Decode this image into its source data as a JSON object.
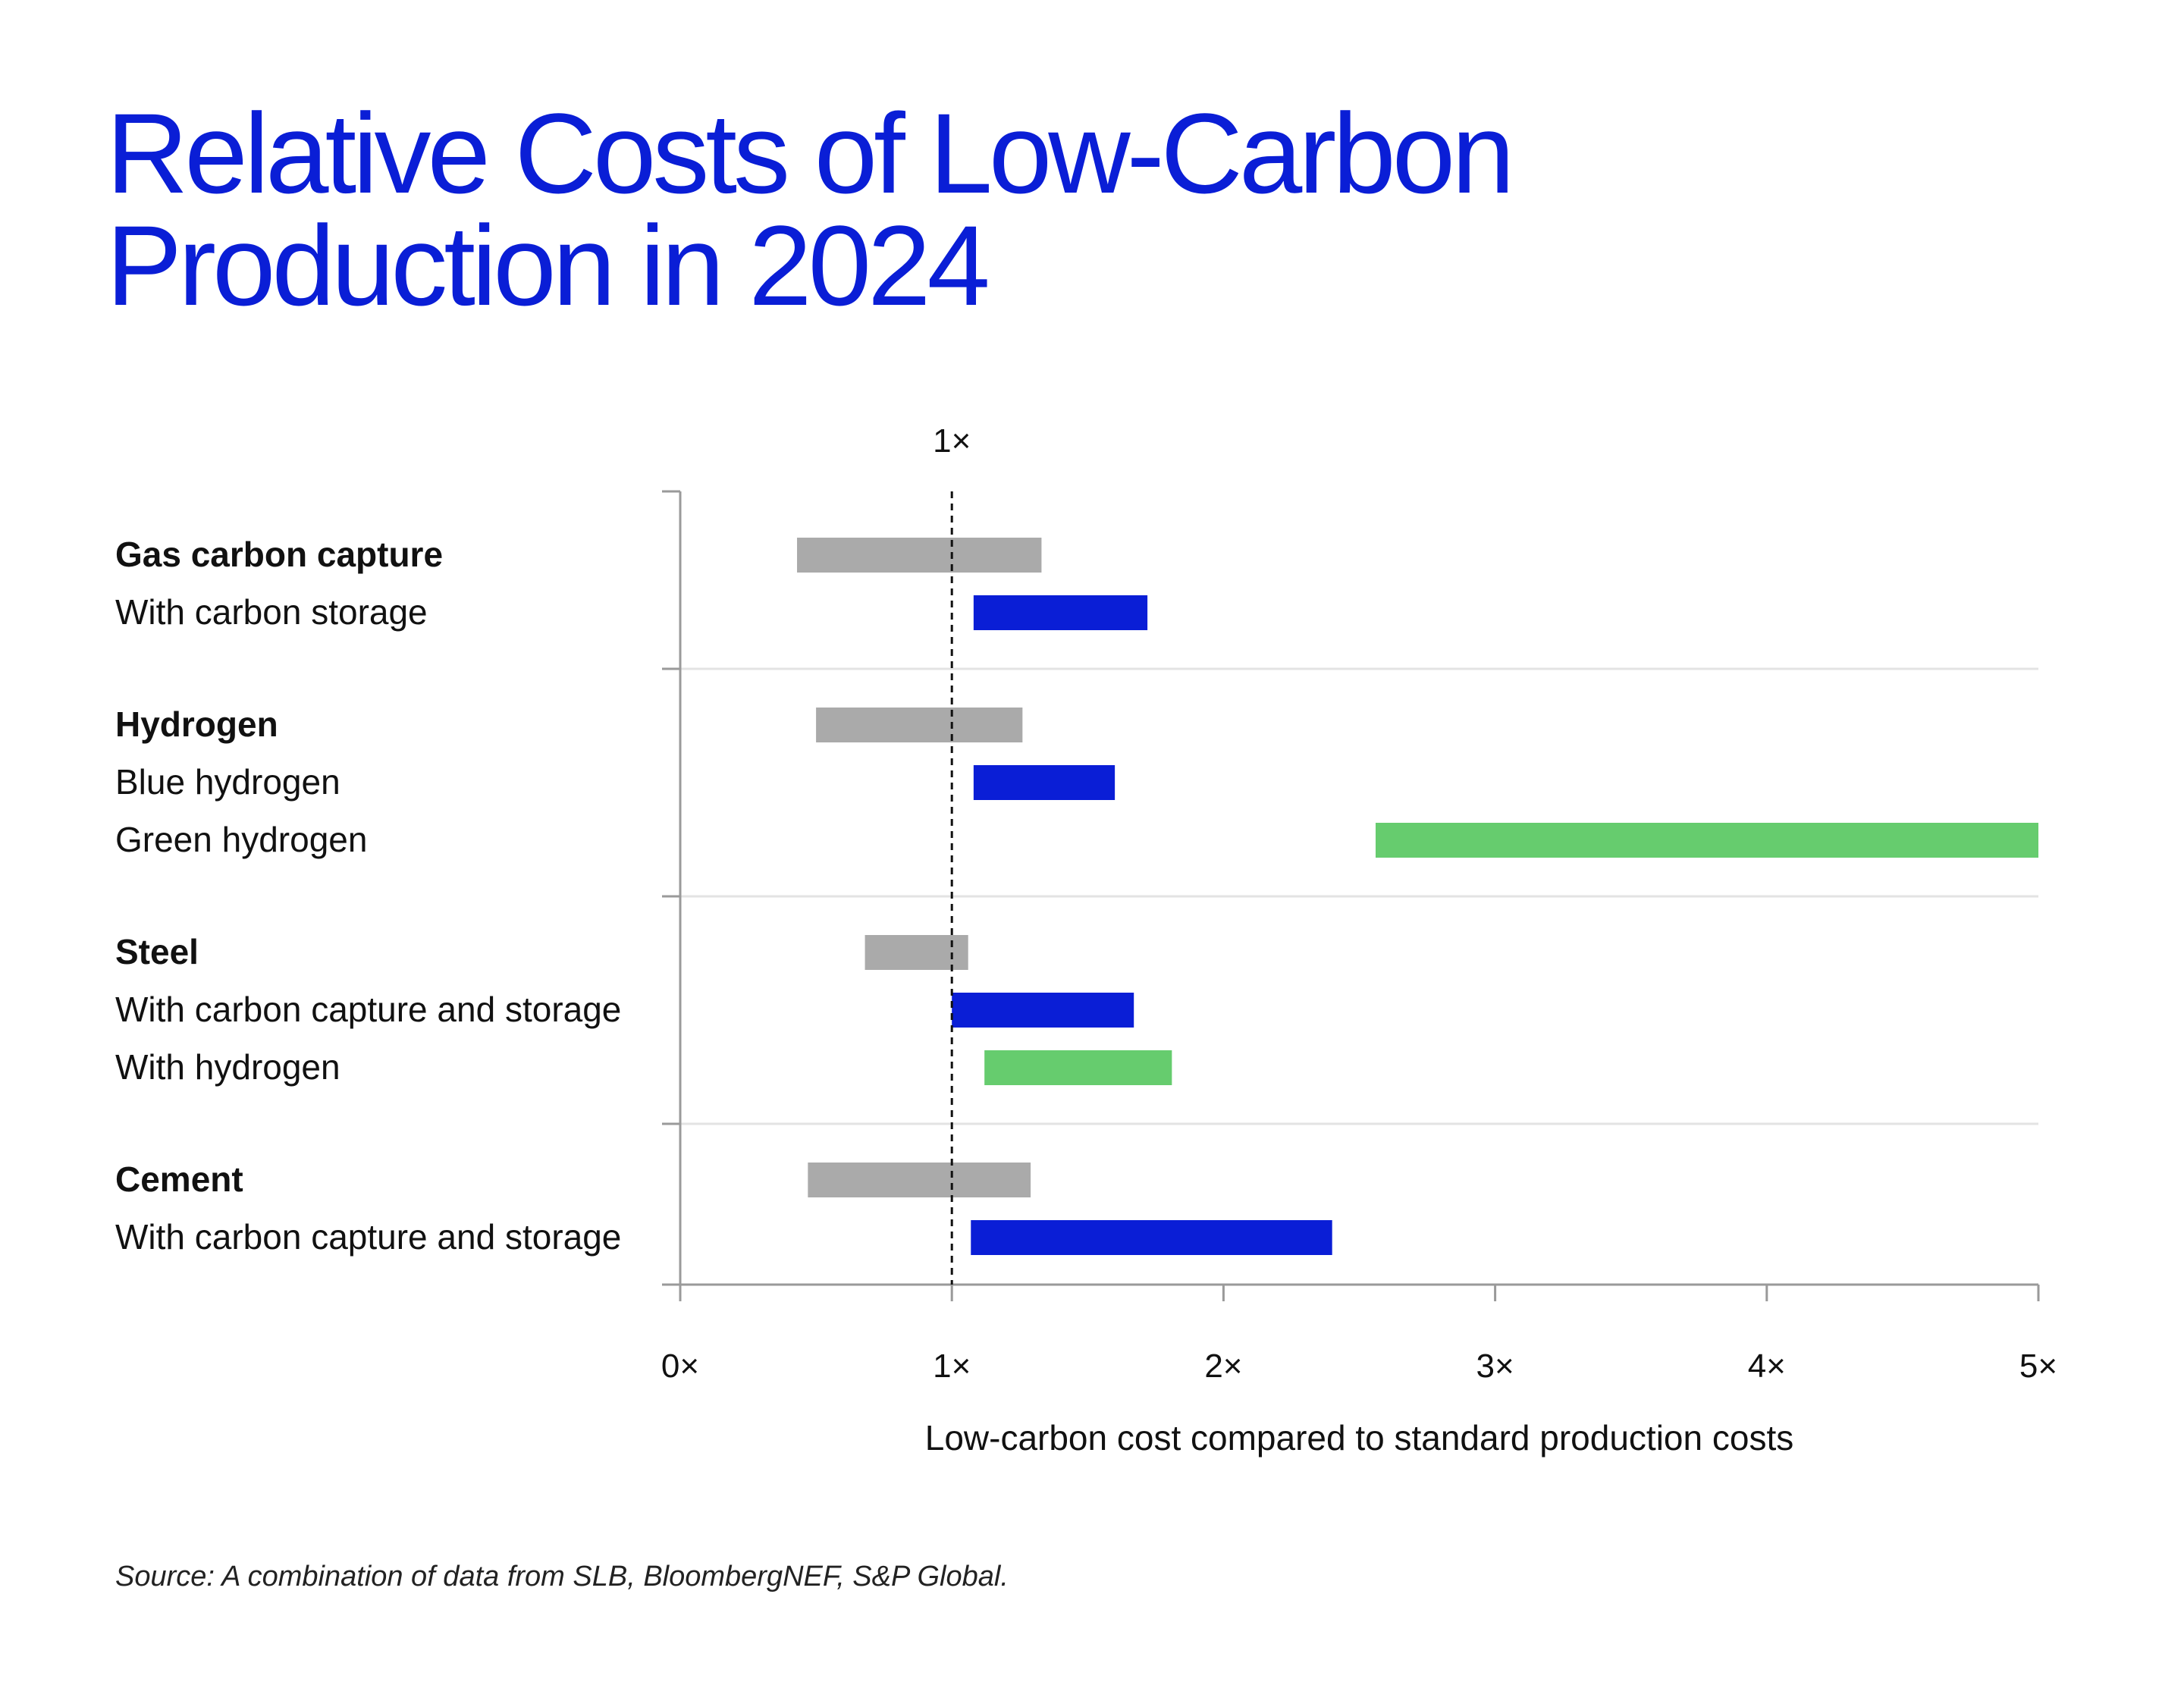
{
  "title": {
    "line1": "Relative Costs of Low-Carbon",
    "line2": "Production in 2024"
  },
  "source": "Source: A combination of data from SLB, BloombergNEF, S&P Global.",
  "colors": {
    "title": "#0a1ed6",
    "standard": "#aaaaaa",
    "blue_option": "#0a1ed6",
    "green_option": "#66cc6e",
    "axis": "#9a9a9a",
    "gridline": "#e3e3e3",
    "text": "#111111"
  },
  "chart_data": {
    "type": "bar",
    "orientation": "horizontal-range",
    "xlabel": "Low-carbon cost compared to standard production costs",
    "xlim": [
      0,
      5
    ],
    "xticks": [
      0,
      1,
      2,
      3,
      4,
      5
    ],
    "xtick_labels": [
      "0×",
      "1×",
      "2×",
      "3×",
      "4×",
      "5×"
    ],
    "reference_line": {
      "value": 1,
      "label": "1×",
      "style": "dashed"
    },
    "groups": [
      {
        "name": "Gas carbon capture",
        "rows": [
          {
            "label": "",
            "kind": "standard",
            "start": 0.43,
            "end": 1.33
          },
          {
            "label": "With carbon storage",
            "kind": "blue",
            "start": 1.08,
            "end": 1.72
          }
        ]
      },
      {
        "name": "Hydrogen",
        "rows": [
          {
            "label": "",
            "kind": "standard",
            "start": 0.5,
            "end": 1.26
          },
          {
            "label": "Blue hydrogen",
            "kind": "blue",
            "start": 1.08,
            "end": 1.6
          },
          {
            "label": "Green hydrogen",
            "kind": "green",
            "start": 2.56,
            "end": 5.0
          }
        ]
      },
      {
        "name": "Steel",
        "rows": [
          {
            "label": "",
            "kind": "standard",
            "start": 0.68,
            "end": 1.06
          },
          {
            "label": "With carbon capture and storage",
            "kind": "blue",
            "start": 1.0,
            "end": 1.67
          },
          {
            "label": "With hydrogen",
            "kind": "green",
            "start": 1.12,
            "end": 1.81
          }
        ]
      },
      {
        "name": "Cement",
        "rows": [
          {
            "label": "",
            "kind": "standard",
            "start": 0.47,
            "end": 1.29
          },
          {
            "label": "With carbon capture and storage",
            "kind": "blue",
            "start": 1.07,
            "end": 2.4
          }
        ]
      }
    ]
  }
}
